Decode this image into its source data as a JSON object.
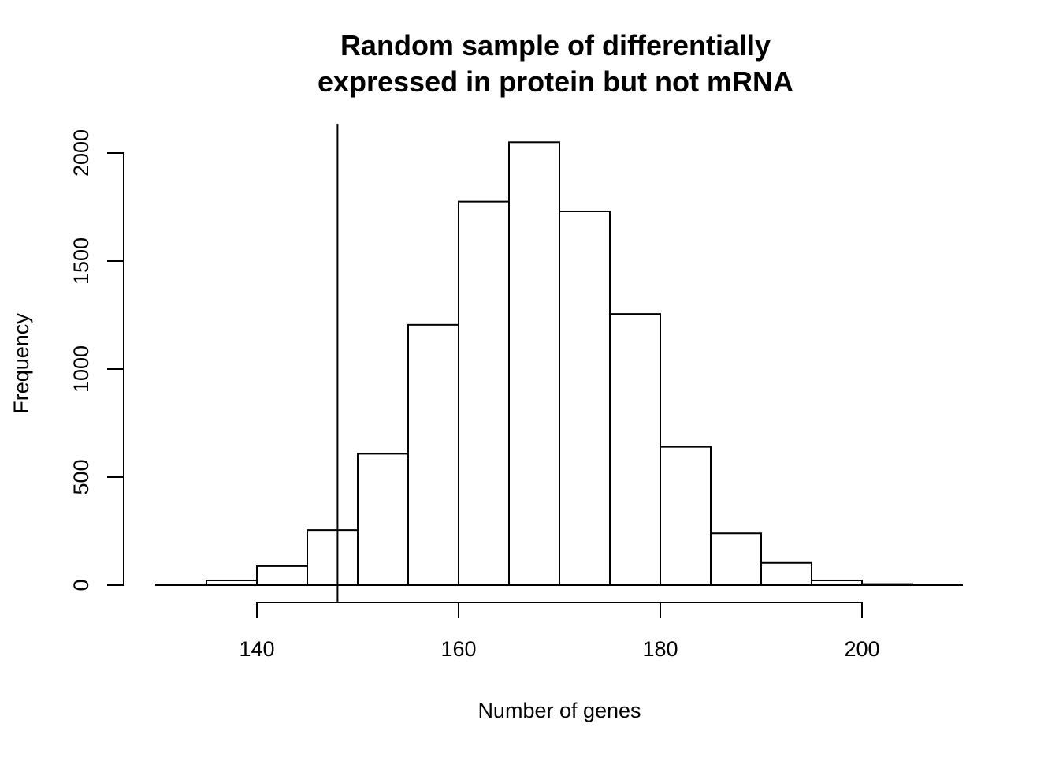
{
  "chart_data": {
    "type": "bar",
    "title": [
      "Random sample of differentially",
      "expressed in protein but not mRNA"
    ],
    "xlabel": "Number of genes",
    "ylabel": "Frequency",
    "bin_edges": [
      130,
      135,
      140,
      145,
      150,
      155,
      160,
      165,
      170,
      175,
      180,
      185,
      190,
      195,
      200,
      205,
      210
    ],
    "values": [
      2,
      22,
      88,
      255,
      608,
      1205,
      1775,
      2050,
      1730,
      1255,
      640,
      240,
      103,
      22,
      5,
      0
    ],
    "xlim": [
      130,
      210
    ],
    "ylim": [
      0,
      2130
    ],
    "x_ticks": [
      140,
      160,
      180,
      200
    ],
    "x_tick_labels": [
      "140",
      "160",
      "180",
      "200"
    ],
    "y_ticks": [
      0,
      500,
      1000,
      1500,
      2000
    ],
    "y_tick_labels": [
      "0",
      "500",
      "1000",
      "1500",
      "2000"
    ],
    "reference_line_x": 148,
    "grid": false,
    "bar_fill": "#ffffff",
    "line_color": "#000000"
  }
}
